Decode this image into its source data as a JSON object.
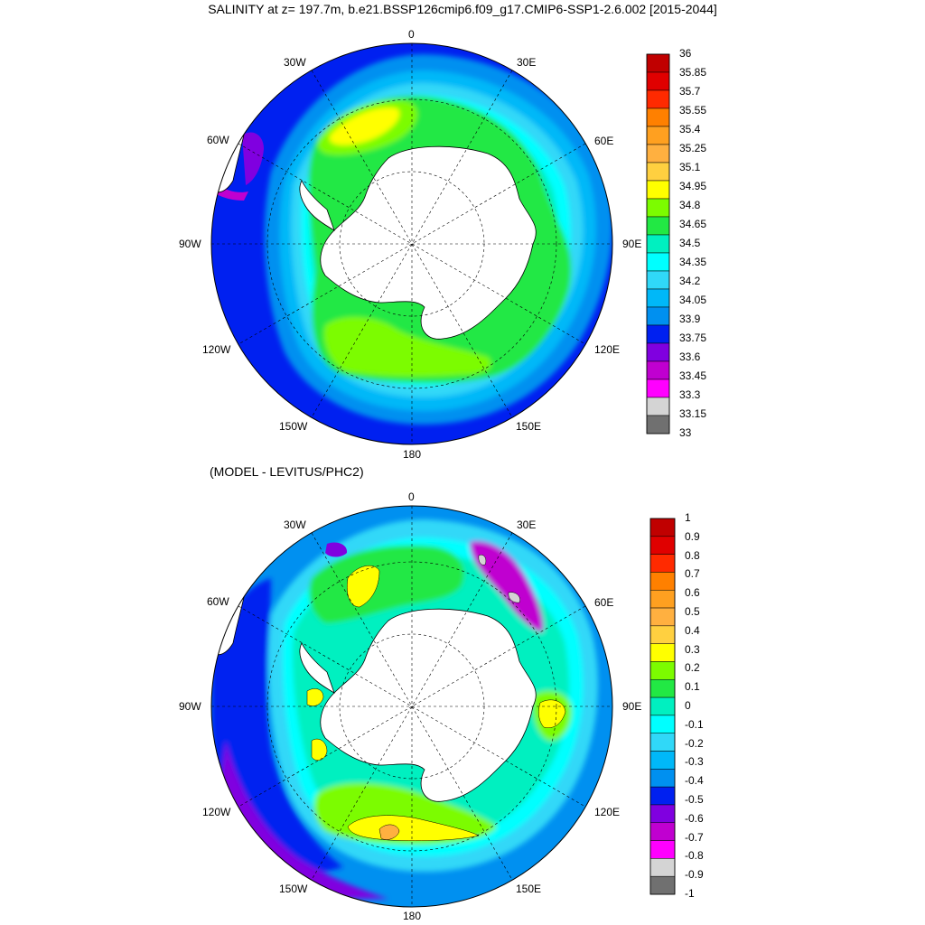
{
  "title": "SALINITY at z= 197.7m, b.e21.BSSP126cmip6.f09_g17.CMIP6-SSP1-2.6.002 [2015-2044]",
  "subtitle": "(MODEL - LEVITUS/PHC2)",
  "longitude_labels": [
    "0",
    "30E",
    "60E",
    "90E",
    "120E",
    "150E",
    "180",
    "150W",
    "120W",
    "90W",
    "60W",
    "30W"
  ],
  "panel_top": {
    "colorbar_labels": [
      "36",
      "35.85",
      "35.7",
      "35.55",
      "35.4",
      "35.25",
      "35.1",
      "34.95",
      "34.8",
      "34.65",
      "34.5",
      "34.35",
      "34.2",
      "34.05",
      "33.9",
      "33.75",
      "33.6",
      "33.45",
      "33.3",
      "33.15",
      "33"
    ],
    "colors": [
      "#c00000",
      "#e00000",
      "#ff2a00",
      "#ff8000",
      "#ffa020",
      "#ffb040",
      "#ffd040",
      "#ffff00",
      "#7cfc00",
      "#22e844",
      "#00f0c0",
      "#00ffff",
      "#30d8f8",
      "#00b8f8",
      "#0090f0",
      "#0020f0",
      "#8000e0",
      "#c000d0",
      "#ff00ff",
      "#d4d4d4",
      "#707070"
    ]
  },
  "panel_bottom": {
    "colorbar_labels": [
      "1",
      "0.9",
      "0.8",
      "0.7",
      "0.6",
      "0.5",
      "0.4",
      "0.3",
      "0.2",
      "0.1",
      "0",
      "-0.1",
      "-0.2",
      "-0.3",
      "-0.4",
      "-0.5",
      "-0.6",
      "-0.7",
      "-0.8",
      "-0.9",
      "-1"
    ],
    "colors": [
      "#c00000",
      "#e00000",
      "#ff2a00",
      "#ff8000",
      "#ffa020",
      "#ffb040",
      "#ffd040",
      "#ffff00",
      "#7cfc00",
      "#22e844",
      "#00f0c0",
      "#00ffff",
      "#30d8f8",
      "#00b8f8",
      "#0090f0",
      "#0020f0",
      "#8000e0",
      "#c000d0",
      "#ff00ff",
      "#d4d4d4",
      "#707070"
    ]
  }
}
